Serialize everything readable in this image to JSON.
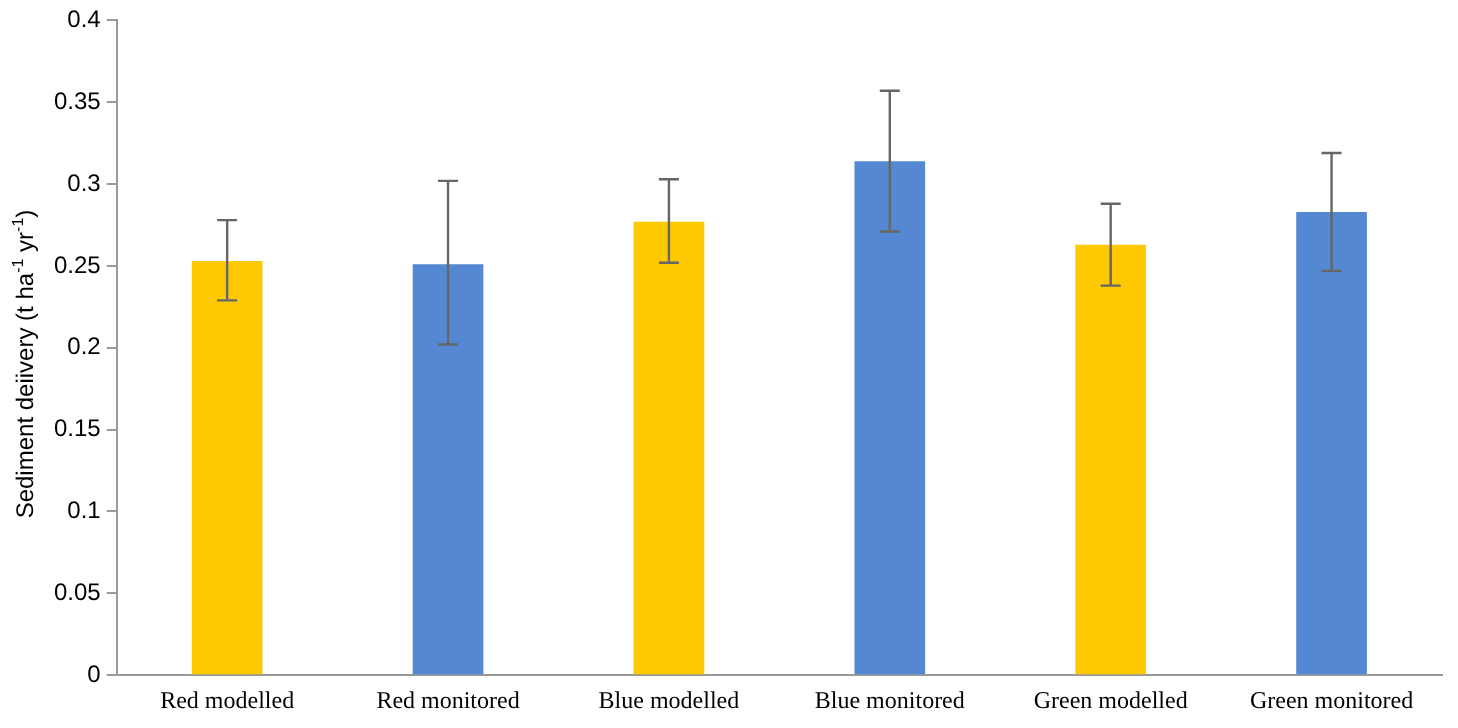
{
  "chart_data": {
    "type": "bar",
    "ylabel": "Sediment deiivery (t ha$^{-1}$ yr$^{-1}$)",
    "categories": [
      "Red modelled",
      "Red monitored",
      "Blue modelled",
      "Blue monitored",
      "Green modelled",
      "Green monitored"
    ],
    "values": [
      0.253,
      0.251,
      0.277,
      0.314,
      0.263,
      0.283
    ],
    "colors": [
      "#fec901",
      "#5588d3",
      "#fec901",
      "#5588d3",
      "#fec901",
      "#5588d3"
    ],
    "errors": [
      [
        0.229,
        0.278
      ],
      [
        0.202,
        0.302
      ],
      [
        0.252,
        0.303
      ],
      [
        0.271,
        0.357
      ],
      [
        0.238,
        0.288
      ],
      [
        0.247,
        0.319
      ]
    ],
    "ylim": [
      0,
      0.4
    ],
    "yticks": [
      0,
      0.05,
      0.1,
      0.15,
      0.2,
      0.25,
      0.3,
      0.35,
      0.4
    ],
    "grid": false,
    "legend": false
  }
}
